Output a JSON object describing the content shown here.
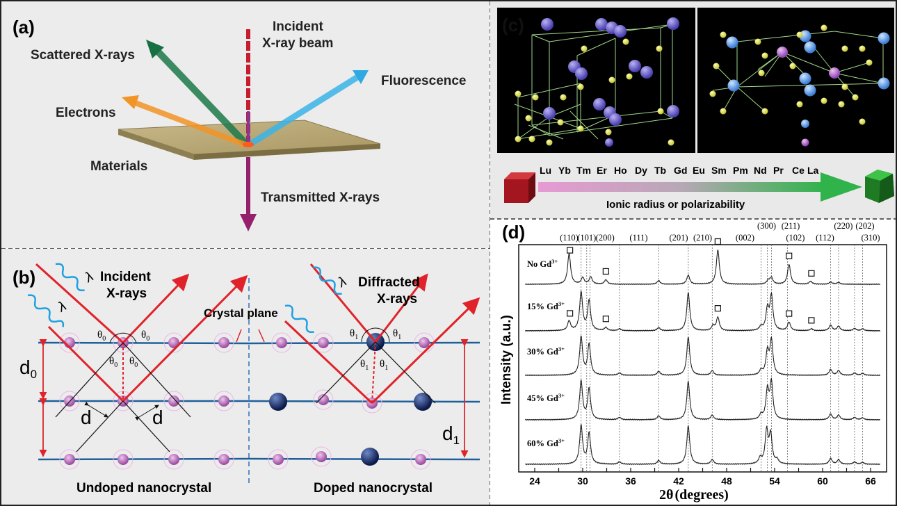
{
  "panel_a": {
    "label": "(a)",
    "incident_l1": "Incident",
    "incident_l2": "X-ray beam",
    "scattered": "Scattered X-rays",
    "fluorescence": "Fluorescence",
    "electrons": "Electrons",
    "materials": "Materials",
    "transmitted": "Transmitted X-rays"
  },
  "panel_b": {
    "label": "(b)",
    "incident_l1": "Incident",
    "incident_l2": "X-rays",
    "diffracted_l1": "Diffracted",
    "diffracted_l2": "X-rays",
    "crystal_plane": "Crystal plane",
    "lambda": "λ",
    "theta0": "θ",
    "theta0_sub": "0",
    "theta1": "θ",
    "theta1_sub": "1",
    "d0": "d",
    "d0_sub": "0",
    "d1": "d",
    "d1_sub": "1",
    "d": "d",
    "undoped": "Undoped nanocrystal",
    "doped": "Doped nanocrystal"
  },
  "panel_c": {
    "label": "(c)",
    "elements": [
      "Lu",
      "Yb",
      "Tm",
      "Er",
      "Ho",
      "Dy",
      "Tb",
      "Gd",
      "Eu",
      "Sm",
      "Pm",
      "Nd",
      "Pr",
      "Ce",
      "La"
    ],
    "axis_caption": "Ionic radius or polarizability"
  },
  "panel_d": {
    "label": "(d)",
    "ylabel": "Intensity (a.u.)",
    "xlabel_sym": "2θ",
    "xlabel_unit": "(degrees)",
    "sample_prefix": [
      "No Gd",
      "15% Gd",
      "30% Gd",
      "45% Gd",
      "60% Gd"
    ],
    "sample_sup": "3+",
    "hkl": [
      {
        "label": "(110)",
        "x": 28.3,
        "row": 0
      },
      {
        "label": "(101)",
        "x": 30.5,
        "row": 0
      },
      {
        "label": "(200)",
        "x": 32.8,
        "row": 0
      },
      {
        "label": "(111)",
        "x": 37.0,
        "row": 0
      },
      {
        "label": "(201)",
        "x": 42.0,
        "row": 0
      },
      {
        "label": "(210)",
        "x": 45.0,
        "row": 0
      },
      {
        "label": "(002)",
        "x": 50.3,
        "row": 0
      },
      {
        "label": "(300)",
        "x": 53.0,
        "row": -1
      },
      {
        "label": "(211)",
        "x": 56.0,
        "row": -1
      },
      {
        "label": "(102)",
        "x": 56.6,
        "row": 0
      },
      {
        "label": "(112)",
        "x": 60.3,
        "row": 0
      },
      {
        "label": "(220)",
        "x": 62.6,
        "row": -1
      },
      {
        "label": "(202)",
        "x": 65.3,
        "row": -1
      },
      {
        "label": "(310)",
        "x": 66.0,
        "row": 0
      }
    ],
    "chart_data": {
      "type": "line",
      "xlabel": "2θ (degrees)",
      "ylabel": "Intensity (a.u.)",
      "xlim": [
        22,
        68
      ],
      "xticks": [
        24,
        27,
        30,
        33,
        36,
        39,
        42,
        45,
        48,
        51,
        54,
        57,
        60,
        63,
        66
      ],
      "xtick_labels": [
        "24",
        "",
        "30",
        "",
        "36",
        "",
        "42",
        "",
        "48",
        "",
        "54",
        "",
        "60",
        "",
        "66"
      ],
      "reference_lines": [
        29.8,
        30.5,
        30.9,
        34.6,
        39.5,
        43.2,
        46.2,
        52.3,
        53.1,
        53.6,
        55.6,
        61.0,
        62.0,
        64.0,
        65.0
      ],
      "series": [
        {
          "name": "No Gd3+",
          "peaks": [
            [
              28.3,
              0.85
            ],
            [
              30.0,
              0.18
            ],
            [
              31.0,
              0.2
            ],
            [
              32.9,
              0.12
            ],
            [
              39.5,
              0.1
            ],
            [
              43.2,
              0.25
            ],
            [
              46.9,
              0.95
            ],
            [
              53.2,
              0.1
            ],
            [
              53.6,
              0.18
            ],
            [
              55.8,
              0.55
            ],
            [
              58.5,
              0.08
            ],
            [
              61.0,
              0.06
            ],
            [
              62.0,
              0.05
            ]
          ],
          "squares": [
            28.4,
            32.9,
            46.9,
            55.8,
            58.6
          ]
        },
        {
          "name": "15% Gd3+",
          "peaks": [
            [
              28.3,
              0.25
            ],
            [
              29.8,
              1.0
            ],
            [
              30.8,
              0.78
            ],
            [
              32.9,
              0.08
            ],
            [
              34.6,
              0.05
            ],
            [
              39.5,
              0.08
            ],
            [
              43.2,
              1.0
            ],
            [
              46.3,
              0.12
            ],
            [
              46.9,
              0.35
            ],
            [
              52.3,
              0.1
            ],
            [
              53.1,
              0.55
            ],
            [
              53.6,
              0.9
            ],
            [
              55.8,
              0.22
            ],
            [
              58.6,
              0.05
            ],
            [
              61.0,
              0.15
            ],
            [
              62.0,
              0.12
            ],
            [
              64.0,
              0.06
            ],
            [
              65.0,
              0.05
            ]
          ],
          "squares": [
            28.4,
            32.9,
            46.9,
            55.8,
            58.6
          ]
        },
        {
          "name": "30% Gd3+",
          "peaks": [
            [
              29.8,
              1.0
            ],
            [
              30.8,
              0.8
            ],
            [
              34.6,
              0.06
            ],
            [
              39.5,
              0.1
            ],
            [
              43.2,
              1.0
            ],
            [
              46.2,
              0.12
            ],
            [
              52.3,
              0.12
            ],
            [
              53.1,
              0.6
            ],
            [
              53.6,
              0.9
            ],
            [
              61.0,
              0.15
            ],
            [
              62.0,
              0.12
            ],
            [
              64.0,
              0.06
            ],
            [
              65.0,
              0.05
            ]
          ],
          "squares": []
        },
        {
          "name": "45% Gd3+",
          "peaks": [
            [
              29.8,
              1.0
            ],
            [
              30.8,
              0.8
            ],
            [
              34.6,
              0.06
            ],
            [
              39.5,
              0.1
            ],
            [
              43.2,
              1.0
            ],
            [
              46.2,
              0.12
            ],
            [
              52.3,
              0.12
            ],
            [
              53.1,
              0.75
            ],
            [
              53.6,
              0.95
            ],
            [
              61.0,
              0.15
            ],
            [
              62.0,
              0.12
            ],
            [
              64.0,
              0.06
            ],
            [
              65.0,
              0.05
            ]
          ],
          "squares": []
        },
        {
          "name": "60% Gd3+",
          "peaks": [
            [
              29.8,
              1.0
            ],
            [
              30.8,
              0.8
            ],
            [
              34.6,
              0.06
            ],
            [
              39.5,
              0.1
            ],
            [
              43.2,
              1.0
            ],
            [
              46.2,
              0.12
            ],
            [
              52.2,
              0.15
            ],
            [
              53.0,
              0.85
            ],
            [
              53.5,
              0.75
            ],
            [
              54.3,
              0.1
            ],
            [
              61.0,
              0.15
            ],
            [
              62.0,
              0.12
            ],
            [
              64.0,
              0.06
            ],
            [
              65.0,
              0.05
            ]
          ],
          "squares": []
        }
      ]
    }
  }
}
